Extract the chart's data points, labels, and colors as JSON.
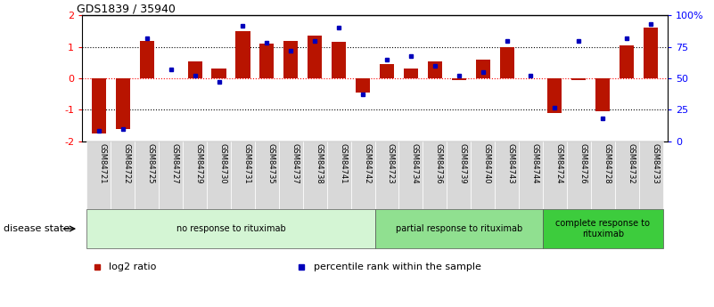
{
  "title": "GDS1839 / 35940",
  "samples": [
    "GSM84721",
    "GSM84722",
    "GSM84725",
    "GSM84727",
    "GSM84729",
    "GSM84730",
    "GSM84731",
    "GSM84735",
    "GSM84737",
    "GSM84738",
    "GSM84741",
    "GSM84742",
    "GSM84723",
    "GSM84734",
    "GSM84736",
    "GSM84739",
    "GSM84740",
    "GSM84743",
    "GSM84744",
    "GSM84724",
    "GSM84726",
    "GSM84728",
    "GSM84732",
    "GSM84733"
  ],
  "log2_ratio": [
    -1.75,
    -1.6,
    1.2,
    0.0,
    0.55,
    0.3,
    1.5,
    1.1,
    1.2,
    1.35,
    1.15,
    -0.45,
    0.45,
    0.3,
    0.55,
    -0.05,
    0.6,
    1.0,
    0.0,
    -1.1,
    -0.05,
    -1.05,
    1.05,
    1.6
  ],
  "percentile": [
    8,
    10,
    82,
    57,
    52,
    47,
    92,
    78,
    72,
    80,
    90,
    37,
    65,
    68,
    60,
    52,
    55,
    80,
    52,
    27,
    80,
    18,
    82,
    93
  ],
  "groups": [
    {
      "label": "no response to rituximab",
      "start": 0,
      "end": 12,
      "color": "#d4f5d4"
    },
    {
      "label": "partial response to rituximab",
      "start": 12,
      "end": 19,
      "color": "#90e090"
    },
    {
      "label": "complete response to\nrituximab",
      "start": 19,
      "end": 24,
      "color": "#3dcc3d"
    }
  ],
  "bar_color": "#b81400",
  "dot_color": "#0000bb",
  "ylim": [
    -2,
    2
  ],
  "y2lim": [
    0,
    100
  ],
  "yticks": [
    -2,
    -1,
    0,
    1,
    2
  ],
  "y2ticks": [
    0,
    25,
    50,
    75,
    100
  ],
  "y2ticklabels": [
    "0",
    "25",
    "50",
    "75",
    "100%"
  ],
  "hlines_black": [
    -1,
    1
  ],
  "hline_red": 0,
  "legend_items": [
    {
      "label": "log2 ratio",
      "color": "#b81400"
    },
    {
      "label": "percentile rank within the sample",
      "color": "#0000bb"
    }
  ],
  "xlabel_disease": "disease state",
  "bar_width": 0.6,
  "xtick_bg": "#d8d8d8"
}
